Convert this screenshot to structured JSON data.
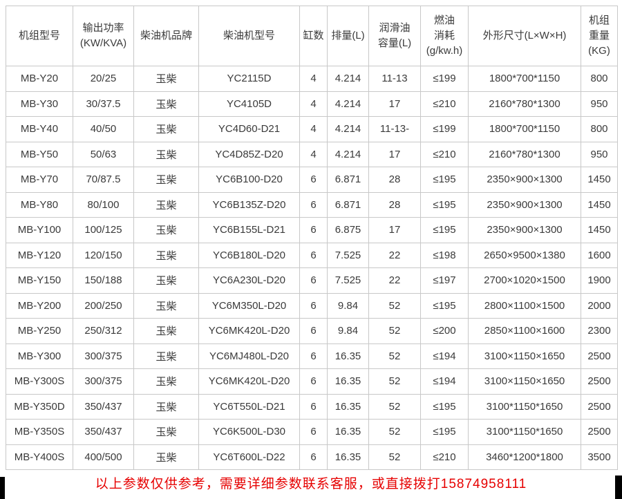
{
  "page": {
    "background": "#ffffff"
  },
  "colors": {
    "cell_text": "#3a3a3a",
    "border": "#c8c8c8",
    "notice_text": "#e60000",
    "corner_marks": "#000000"
  },
  "table": {
    "headers": [
      "机组型号",
      "输出功率\n(KW/KVA)",
      "柴油机品牌",
      "柴油机型号",
      "缸数",
      "排量(L)",
      "润滑油\n容量(L)",
      "燃油\n消耗\n(g/kw.h)",
      "外形尺寸(L×W×H)",
      "机组\n重量\n(KG)"
    ],
    "rows": [
      {
        "model": "MB-Y20",
        "power": "20/25",
        "brand": "玉柴",
        "engine": "YC2115D",
        "cylinders": "4",
        "displacement": "4.214",
        "lube": "11-13",
        "fuel": "≤199",
        "dimensions": "1800*700*1150",
        "weight": "800"
      },
      {
        "model": "MB-Y30",
        "power": "30/37.5",
        "brand": "玉柴",
        "engine": "YC4105D",
        "cylinders": "4",
        "displacement": "4.214",
        "lube": "17",
        "fuel": "≤210",
        "dimensions": "2160*780*1300",
        "weight": "950"
      },
      {
        "model": "MB-Y40",
        "power": "40/50",
        "brand": "玉柴",
        "engine": "YC4D60-D21",
        "cylinders": "4",
        "displacement": "4.214",
        "lube": "11-13-",
        "fuel": "≤199",
        "dimensions": "1800*700*1150",
        "weight": "800"
      },
      {
        "model": "MB-Y50",
        "power": "50/63",
        "brand": "玉柴",
        "engine": "YC4D85Z-D20",
        "cylinders": "4",
        "displacement": "4.214",
        "lube": "17",
        "fuel": "≤210",
        "dimensions": "2160*780*1300",
        "weight": "950"
      },
      {
        "model": "MB-Y70",
        "power": "70/87.5",
        "brand": "玉柴",
        "engine": "YC6B100-D20",
        "cylinders": "6",
        "displacement": "6.871",
        "lube": "28",
        "fuel": "≤195",
        "dimensions": "2350×900×1300",
        "weight": "1450"
      },
      {
        "model": "MB-Y80",
        "power": "80/100",
        "brand": "玉柴",
        "engine": "YC6B135Z-D20",
        "cylinders": "6",
        "displacement": "6.871",
        "lube": "28",
        "fuel": "≤195",
        "dimensions": "2350×900×1300",
        "weight": "1450"
      },
      {
        "model": "MB-Y100",
        "power": "100/125",
        "brand": "玉柴",
        "engine": "YC6B155L-D21",
        "cylinders": "6",
        "displacement": "6.875",
        "lube": "17",
        "fuel": "≤195",
        "dimensions": "2350×900×1300",
        "weight": "1450"
      },
      {
        "model": "MB-Y120",
        "power": "120/150",
        "brand": "玉柴",
        "engine": "YC6B180L-D20",
        "cylinders": "6",
        "displacement": "7.525",
        "lube": "22",
        "fuel": "≤198",
        "dimensions": "2650×9500×1380",
        "weight": "1600"
      },
      {
        "model": "MB-Y150",
        "power": "150/188",
        "brand": "玉柴",
        "engine": "YC6A230L-D20",
        "cylinders": "6",
        "displacement": "7.525",
        "lube": "22",
        "fuel": "≤197",
        "dimensions": "2700×1020×1500",
        "weight": "1900"
      },
      {
        "model": "MB-Y200",
        "power": "200/250",
        "brand": "玉柴",
        "engine": "YC6M350L-D20",
        "cylinders": "6",
        "displacement": "9.84",
        "lube": "52",
        "fuel": "≤195",
        "dimensions": "2800×1100×1500",
        "weight": "2000"
      },
      {
        "model": "MB-Y250",
        "power": "250/312",
        "brand": "玉柴",
        "engine": "YC6MK420L-D20",
        "cylinders": "6",
        "displacement": "9.84",
        "lube": "52",
        "fuel": "≤200",
        "dimensions": "2850×1100×1600",
        "weight": "2300"
      },
      {
        "model": "MB-Y300",
        "power": "300/375",
        "brand": "玉柴",
        "engine": "YC6MJ480L-D20",
        "cylinders": "6",
        "displacement": "16.35",
        "lube": "52",
        "fuel": "≤194",
        "dimensions": "3100×1150×1650",
        "weight": "2500"
      },
      {
        "model": "MB-Y300S",
        "power": "300/375",
        "brand": "玉柴",
        "engine": "YC6MK420L-D20",
        "cylinders": "6",
        "displacement": "16.35",
        "lube": "52",
        "fuel": "≤194",
        "dimensions": "3100×1150×1650",
        "weight": "2500"
      },
      {
        "model": "MB-Y350D",
        "power": "350/437",
        "brand": "玉柴",
        "engine": "YC6T550L-D21",
        "cylinders": "6",
        "displacement": "16.35",
        "lube": "52",
        "fuel": "≤195",
        "dimensions": "3100*1150*1650",
        "weight": "2500"
      },
      {
        "model": "MB-Y350S",
        "power": "350/437",
        "brand": "玉柴",
        "engine": "YC6K500L-D30",
        "cylinders": "6",
        "displacement": "16.35",
        "lube": "52",
        "fuel": "≤195",
        "dimensions": "3100*1150*1650",
        "weight": "2500"
      },
      {
        "model": "MB-Y400S",
        "power": "400/500",
        "brand": "玉柴",
        "engine": "YC6T600L-D22",
        "cylinders": "6",
        "displacement": "16.35",
        "lube": "52",
        "fuel": "≤210",
        "dimensions": "3460*1200*1800",
        "weight": "3500"
      }
    ]
  },
  "footer": {
    "notice": "以上参数仅供参考，需要详细参数联系客服，或直接拨打15874958111"
  }
}
